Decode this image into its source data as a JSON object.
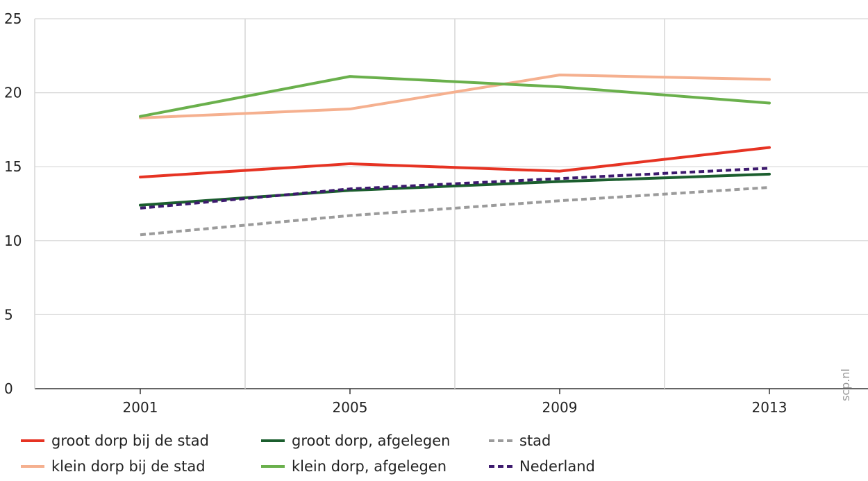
{
  "chart_data": {
    "type": "line",
    "title": "",
    "xlabel": "",
    "ylabel": "",
    "categories": [
      "2001",
      "2005",
      "2009",
      "2013"
    ],
    "ylim": [
      0,
      25
    ],
    "yticks": [
      "0",
      "5",
      "10",
      "15",
      "20",
      "25"
    ],
    "grid": true,
    "legend_position": "bottom",
    "series": [
      {
        "name": "groot dorp bij de stad",
        "color": "#e63323",
        "dashed": false,
        "values": [
          14.3,
          15.2,
          14.7,
          16.3
        ]
      },
      {
        "name": "klein dorp bij de stad",
        "color": "#f5b08f",
        "dashed": false,
        "values": [
          18.3,
          18.9,
          21.2,
          20.9
        ]
      },
      {
        "name": "groot dorp, afgelegen",
        "color": "#1b5e2e",
        "dashed": false,
        "values": [
          12.4,
          13.4,
          14.0,
          14.5
        ]
      },
      {
        "name": "klein dorp, afgelegen",
        "color": "#6ab04c",
        "dashed": false,
        "values": [
          18.4,
          21.1,
          20.4,
          19.3
        ]
      },
      {
        "name": "stad",
        "color": "#9b9b9b",
        "dashed": true,
        "values": [
          10.4,
          11.7,
          12.7,
          13.6
        ]
      },
      {
        "name": "Nederland",
        "color": "#3d1a6e",
        "dashed": true,
        "values": [
          12.2,
          13.5,
          14.2,
          14.9
        ]
      }
    ]
  },
  "watermark": "scp.nl"
}
